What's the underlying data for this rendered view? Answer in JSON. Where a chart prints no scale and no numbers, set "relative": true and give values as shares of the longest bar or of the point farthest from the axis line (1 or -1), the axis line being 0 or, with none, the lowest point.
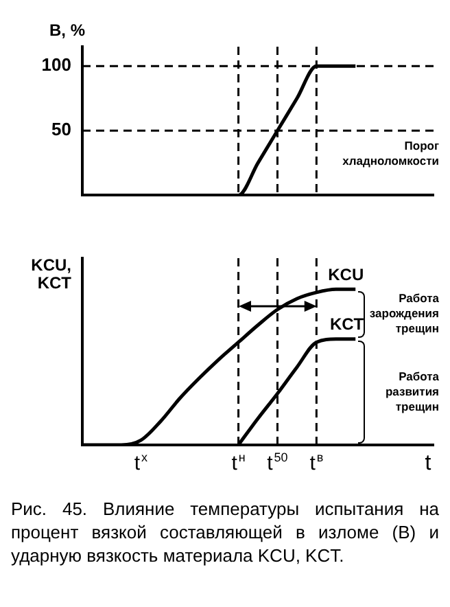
{
  "chart_data": [
    {
      "type": "line",
      "ylabel": "B, %",
      "categories": [
        null,
        null,
        null,
        "t$^{x}$",
        null,
        null,
        null,
        null,
        "t$^{н}$",
        null,
        "t$^{50}$",
        null,
        "t$^{в}$",
        null,
        null,
        null,
        null,
        null,
        "t"
      ],
      "series": [
        {
          "color": "#000000",
          "values": [
            0,
            0,
            0,
            0,
            0,
            0,
            0,
            0,
            0,
            25,
            50,
            75,
            100,
            100,
            100,
            null,
            null,
            null,
            null
          ]
        }
      ],
      "ylim": [
        0,
        115
      ],
      "yticks": [
        50,
        100
      ],
      "tick_labels": "y",
      "grid": false,
      "legend": false,
      "marker": "none",
      "line_style": "solid",
      "ref_lines": [
        {
          "axis": "y",
          "value": 50,
          "line_style": "dashed"
        },
        {
          "axis": "y",
          "value": 100,
          "line_style": "dashed"
        },
        {
          "axis": "x",
          "value": "t$^{н}$",
          "line_style": "dashed"
        },
        {
          "axis": "x",
          "value": "t$^{50}$",
          "line_style": "dashed"
        },
        {
          "axis": "x",
          "value": "t$^{в}$",
          "line_style": "dashed"
        }
      ],
      "annotations": [
        "Порог хладноломкости"
      ]
    },
    {
      "type": "line",
      "ylabel": "KCU, KCT",
      "xlabel": "t",
      "relative": true,
      "categories": [
        null,
        null,
        null,
        "t$^{x}$",
        null,
        null,
        null,
        null,
        "t$^{н}$",
        null,
        "t$^{50}$",
        null,
        "t$^{в}$",
        null,
        null,
        null,
        null,
        null,
        "t"
      ],
      "series": [
        {
          "name": "KCU",
          "color": "#000000",
          "values": [
            0,
            0,
            0,
            0.03,
            0.15,
            0.3,
            0.43,
            0.55,
            0.66,
            0.77,
            0.87,
            0.94,
            0.98,
            1,
            1,
            null,
            null,
            null,
            null
          ]
        },
        {
          "name": "KCT",
          "color": "#000000",
          "values": [
            null,
            null,
            null,
            null,
            null,
            null,
            null,
            null,
            0,
            0.17,
            0.33,
            0.5,
            0.66,
            0.68,
            0.68,
            null,
            null,
            null,
            null
          ]
        }
      ],
      "tick_labels": "x",
      "grid": false,
      "legend": false,
      "marker": "none",
      "line_style": "solid",
      "ref_lines": [
        {
          "axis": "x",
          "value": "t$^{н}$",
          "line_style": "dashed"
        },
        {
          "axis": "x",
          "value": "t$^{50}$",
          "line_style": "dashed"
        },
        {
          "axis": "x",
          "value": "t$^{в}$",
          "line_style": "dashed"
        }
      ],
      "annotations": [
        "Работа зарождения трещин",
        "Работа развития трещин",
        "Рис. 45. Влияние температуры испытания на процент вязкой составляющей в изломе (В) и ударную вязкость материала KCU, KCT."
      ]
    }
  ]
}
